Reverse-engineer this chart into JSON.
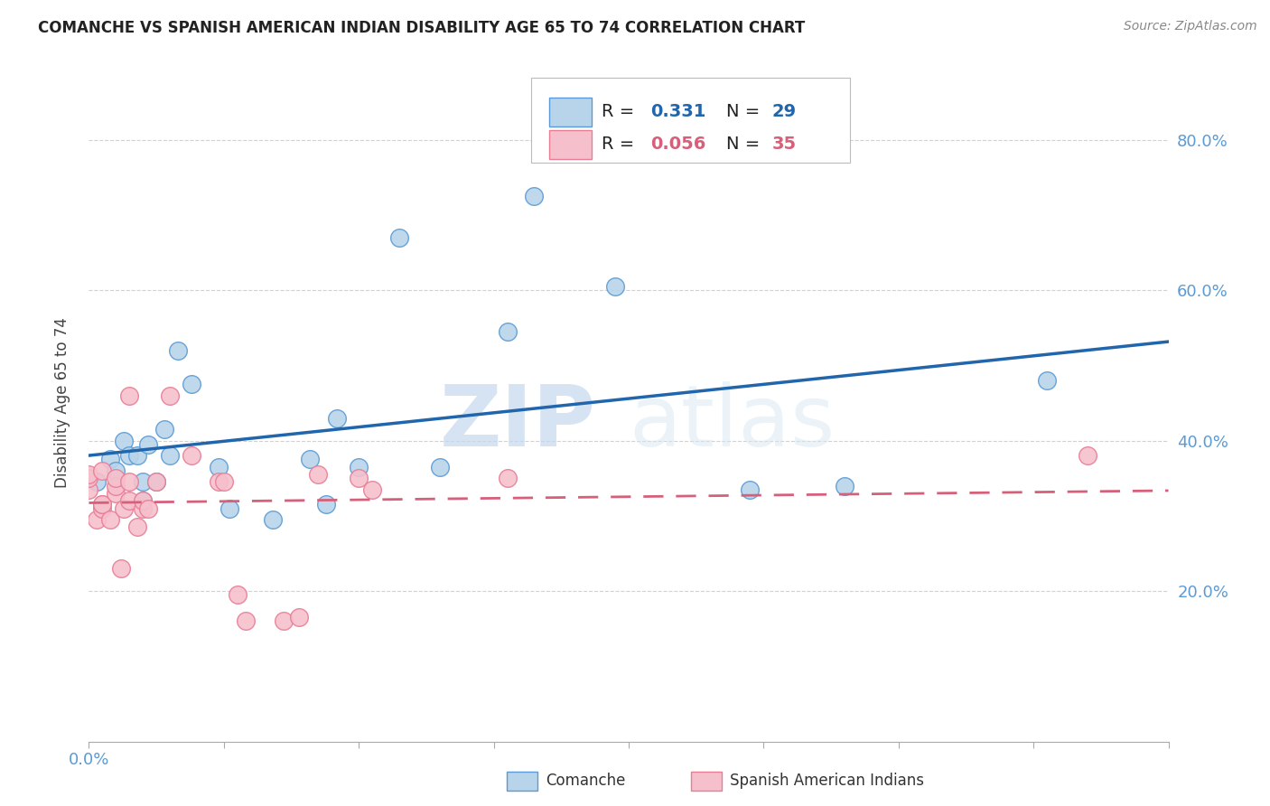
{
  "title": "COMANCHE VS SPANISH AMERICAN INDIAN DISABILITY AGE 65 TO 74 CORRELATION CHART",
  "source": "Source: ZipAtlas.com",
  "ylabel": "Disability Age 65 to 74",
  "xlim": [
    0.0,
    0.4
  ],
  "ylim": [
    0.0,
    0.9
  ],
  "xtick_values": [
    0.0,
    0.05,
    0.1,
    0.15,
    0.2,
    0.25,
    0.3,
    0.35,
    0.4
  ],
  "xtick_major_values": [
    0.0,
    0.4
  ],
  "xtick_labels_shown": {
    "0.0": "0.0%",
    "0.40": "40.0%"
  },
  "ytick_values": [
    0.2,
    0.4,
    0.6,
    0.8
  ],
  "ytick_labels": [
    "20.0%",
    "40.0%",
    "60.0%",
    "80.0%"
  ],
  "comanche_color": "#b8d4ea",
  "spanish_color": "#f5c0cc",
  "comanche_edge_color": "#5b9bd5",
  "spanish_edge_color": "#e87d96",
  "comanche_line_color": "#2166ac",
  "spanish_line_color": "#d6607a",
  "legend_r_comanche": "0.331",
  "legend_n_comanche": "29",
  "legend_r_spanish": "0.056",
  "legend_n_spanish": "35",
  "watermark_zip": "ZIP",
  "watermark_atlas": "atlas",
  "comanche_x": [
    0.003,
    0.008,
    0.01,
    0.013,
    0.015,
    0.018,
    0.02,
    0.02,
    0.022,
    0.025,
    0.028,
    0.03,
    0.033,
    0.038,
    0.048,
    0.052,
    0.068,
    0.082,
    0.088,
    0.092,
    0.1,
    0.115,
    0.13,
    0.155,
    0.165,
    0.195,
    0.245,
    0.28,
    0.355
  ],
  "comanche_y": [
    0.345,
    0.375,
    0.36,
    0.4,
    0.38,
    0.38,
    0.345,
    0.32,
    0.395,
    0.345,
    0.415,
    0.38,
    0.52,
    0.475,
    0.365,
    0.31,
    0.295,
    0.375,
    0.315,
    0.43,
    0.365,
    0.67,
    0.365,
    0.545,
    0.725,
    0.605,
    0.335,
    0.34,
    0.48
  ],
  "spanish_x": [
    0.0,
    0.0,
    0.0,
    0.003,
    0.005,
    0.005,
    0.005,
    0.005,
    0.008,
    0.01,
    0.01,
    0.01,
    0.012,
    0.013,
    0.015,
    0.015,
    0.015,
    0.018,
    0.02,
    0.02,
    0.022,
    0.025,
    0.03,
    0.038,
    0.048,
    0.05,
    0.055,
    0.058,
    0.072,
    0.078,
    0.085,
    0.1,
    0.105,
    0.155,
    0.37
  ],
  "spanish_y": [
    0.335,
    0.35,
    0.355,
    0.295,
    0.31,
    0.315,
    0.315,
    0.36,
    0.295,
    0.33,
    0.34,
    0.35,
    0.23,
    0.31,
    0.32,
    0.345,
    0.46,
    0.285,
    0.31,
    0.32,
    0.31,
    0.345,
    0.46,
    0.38,
    0.345,
    0.345,
    0.195,
    0.16,
    0.16,
    0.165,
    0.355,
    0.35,
    0.335,
    0.35,
    0.38
  ]
}
